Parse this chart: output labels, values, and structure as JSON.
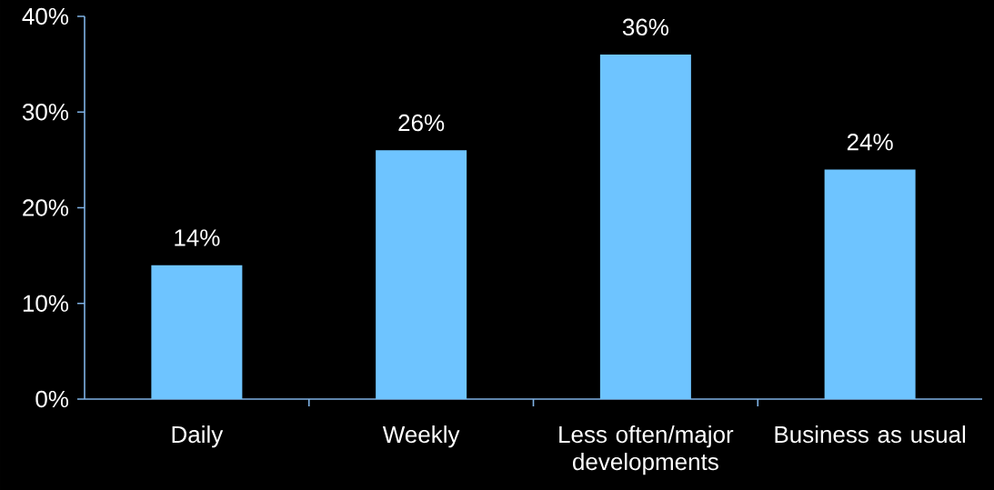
{
  "chart_data": {
    "type": "bar",
    "categories": [
      "Daily",
      "Weekly",
      "Less often/major developments",
      "Business as usual"
    ],
    "values": [
      14,
      26,
      36,
      24
    ],
    "value_labels": [
      "14%",
      "26%",
      "36%",
      "24%"
    ],
    "color": "#6ec4ff",
    "ylim": [
      0,
      40
    ],
    "yticks": [
      {
        "value": 0,
        "label": "0%"
      },
      {
        "value": 10,
        "label": "10%"
      },
      {
        "value": 20,
        "label": "20%"
      },
      {
        "value": 30,
        "label": "30%"
      },
      {
        "value": 40,
        "label": "40%"
      }
    ]
  }
}
